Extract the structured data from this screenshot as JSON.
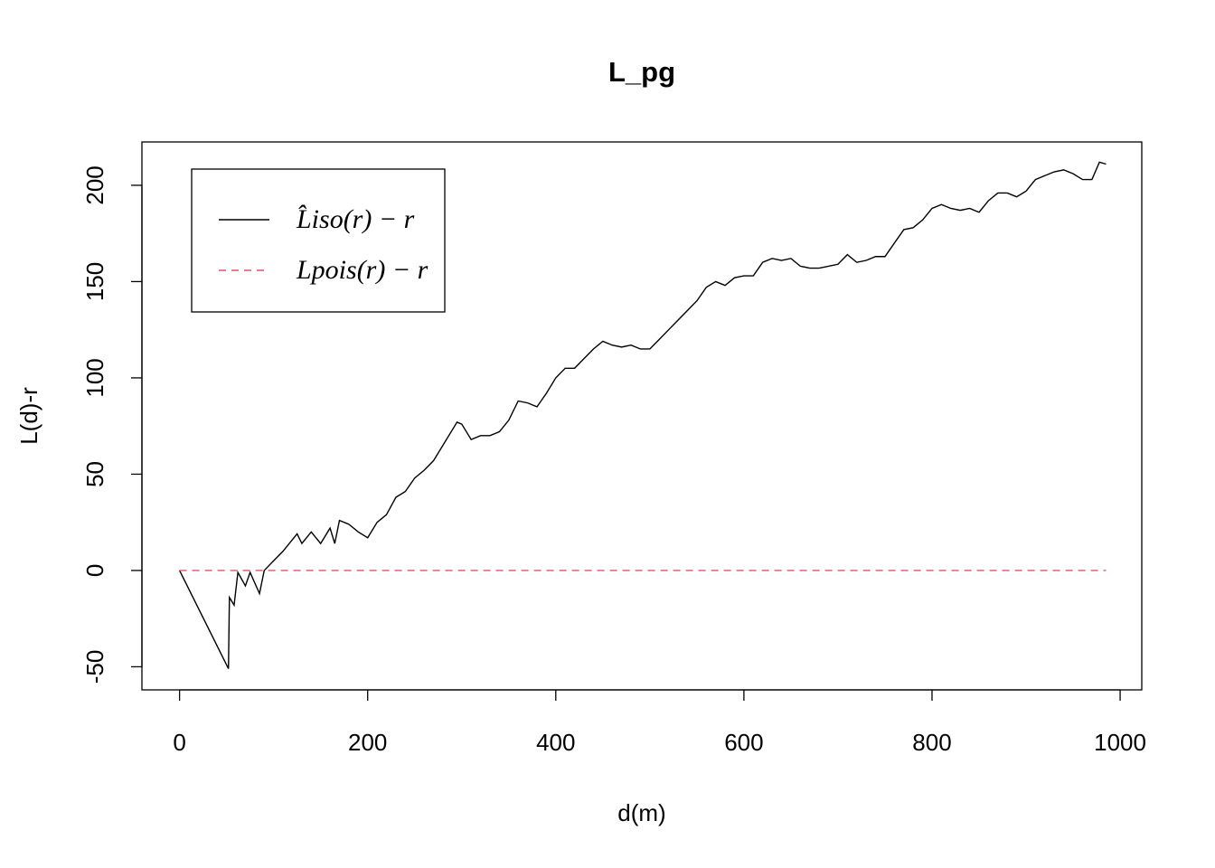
{
  "chart_data": {
    "type": "line",
    "title": "L_pg",
    "xlabel": "d(m)",
    "ylabel": "L(d)-r",
    "xlim": [
      -40,
      1023
    ],
    "ylim": [
      -62,
      222.5
    ],
    "xticks": [
      0,
      200,
      400,
      600,
      800,
      1000
    ],
    "yticks": [
      -50,
      0,
      50,
      100,
      150,
      200
    ],
    "grid": false,
    "legend": "top-left",
    "series": [
      {
        "name": "L̂iso(r) − r",
        "color": "#000000",
        "dash": false,
        "x": [
          0,
          52,
          53,
          58,
          62,
          70,
          75,
          85,
          90,
          100,
          110,
          120,
          125,
          130,
          140,
          150,
          160,
          165,
          170,
          180,
          190,
          200,
          210,
          220,
          230,
          240,
          250,
          260,
          270,
          280,
          290,
          295,
          300,
          305,
          310,
          320,
          330,
          340,
          350,
          360,
          370,
          380,
          390,
          400,
          410,
          420,
          430,
          440,
          450,
          460,
          470,
          480,
          490,
          500,
          510,
          520,
          530,
          540,
          550,
          560,
          570,
          580,
          590,
          600,
          610,
          620,
          630,
          640,
          650,
          660,
          670,
          680,
          690,
          700,
          710,
          720,
          730,
          740,
          750,
          760,
          770,
          780,
          790,
          800,
          810,
          820,
          830,
          840,
          850,
          860,
          870,
          880,
          890,
          900,
          910,
          920,
          930,
          940,
          950,
          960,
          970,
          978,
          985
        ],
        "values": [
          0,
          -51,
          -14,
          -18,
          -1,
          -8,
          -1,
          -12,
          0,
          5,
          10,
          16,
          19,
          14,
          20,
          14,
          22,
          14,
          26,
          24,
          20,
          17,
          25,
          29,
          38,
          41,
          48,
          52,
          57,
          65,
          73,
          77,
          76,
          72,
          68,
          70,
          70,
          72,
          78,
          88,
          87,
          85,
          92,
          100,
          105,
          105,
          110,
          115,
          119,
          117,
          116,
          117,
          115,
          115,
          120,
          125,
          130,
          135,
          140,
          147,
          150,
          148,
          152,
          153,
          153,
          160,
          162,
          161,
          162,
          158,
          157,
          157,
          158,
          159,
          164,
          160,
          161,
          163,
          163,
          170,
          177,
          178,
          182,
          188,
          190,
          188,
          187,
          188,
          186,
          192,
          196,
          196,
          194,
          197,
          203,
          205,
          207,
          208,
          206,
          203,
          203,
          212,
          211
        ]
      },
      {
        "name": "Lpois(r) − r",
        "color": "#df536b",
        "dash": true,
        "x": [
          0,
          985
        ],
        "values": [
          0,
          0
        ]
      }
    ]
  }
}
